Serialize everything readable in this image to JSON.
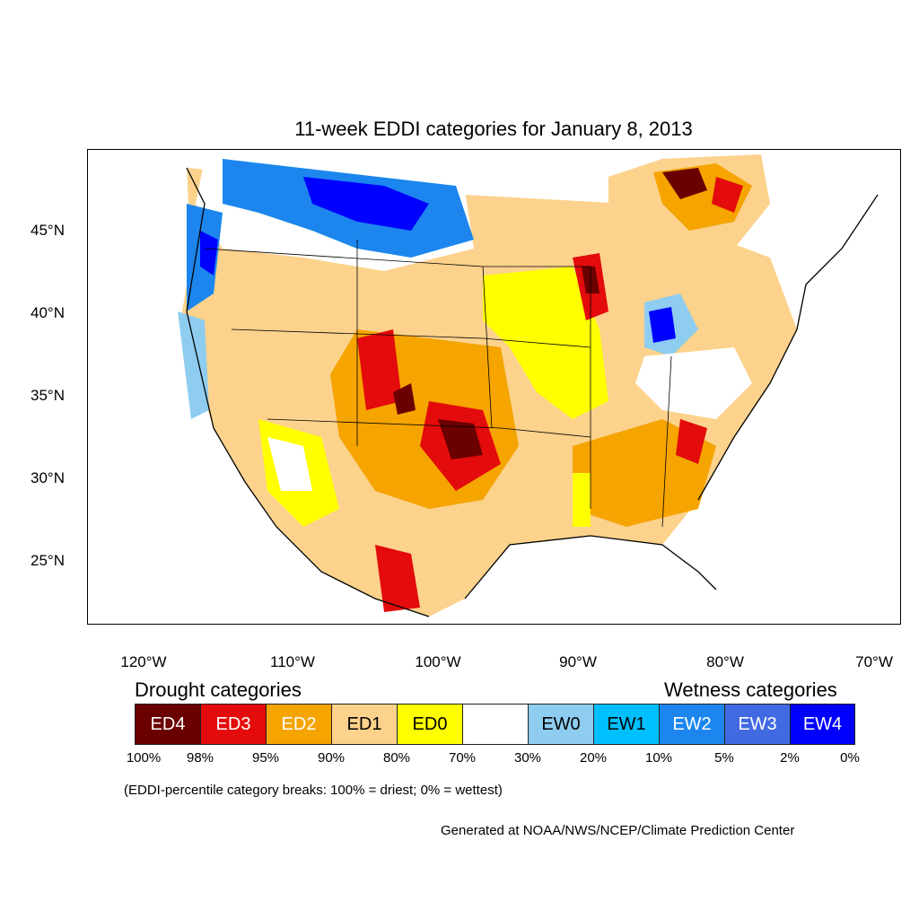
{
  "title": "11-week EDDI categories for January 8, 2013",
  "map": {
    "lat_labels": [
      "45°N",
      "40°N",
      "35°N",
      "30°N",
      "25°N"
    ],
    "lon_labels": [
      "120°W",
      "110°W",
      "100°W",
      "90°W",
      "80°W",
      "70°W"
    ]
  },
  "legend": {
    "drought_heading": "Drought categories",
    "wetness_heading": "Wetness categories",
    "categories": [
      {
        "label": "ED4",
        "color": "#6b0000",
        "text_color": "#ffffff"
      },
      {
        "label": "ED3",
        "color": "#e30b0b",
        "text_color": "#ffffff"
      },
      {
        "label": "ED2",
        "color": "#f5a400",
        "text_color": "#ffffff"
      },
      {
        "label": "ED1",
        "color": "#fcd28c",
        "text_color": "#000000"
      },
      {
        "label": "ED0",
        "color": "#ffff00",
        "text_color": "#000000"
      },
      {
        "label": "",
        "color": "#ffffff",
        "text_color": "#000000"
      },
      {
        "label": "EW0",
        "color": "#8ecdf0",
        "text_color": "#000000"
      },
      {
        "label": "EW1",
        "color": "#00bfff",
        "text_color": "#000000"
      },
      {
        "label": "EW2",
        "color": "#1c86ee",
        "text_color": "#ffffff"
      },
      {
        "label": "EW3",
        "color": "#4169e1",
        "text_color": "#ffffff"
      },
      {
        "label": "EW4",
        "color": "#0000ff",
        "text_color": "#ffffff"
      }
    ],
    "breaks": [
      "100%",
      "98%",
      "95%",
      "90%",
      "80%",
      "70%",
      "30%",
      "20%",
      "10%",
      "5%",
      "2%",
      "0%"
    ]
  },
  "note": "(EDDI-percentile category breaks: 100% = driest; 0% = wettest)",
  "credit": "Generated at NOAA/NWS/NCEP/Climate Prediction Center"
}
